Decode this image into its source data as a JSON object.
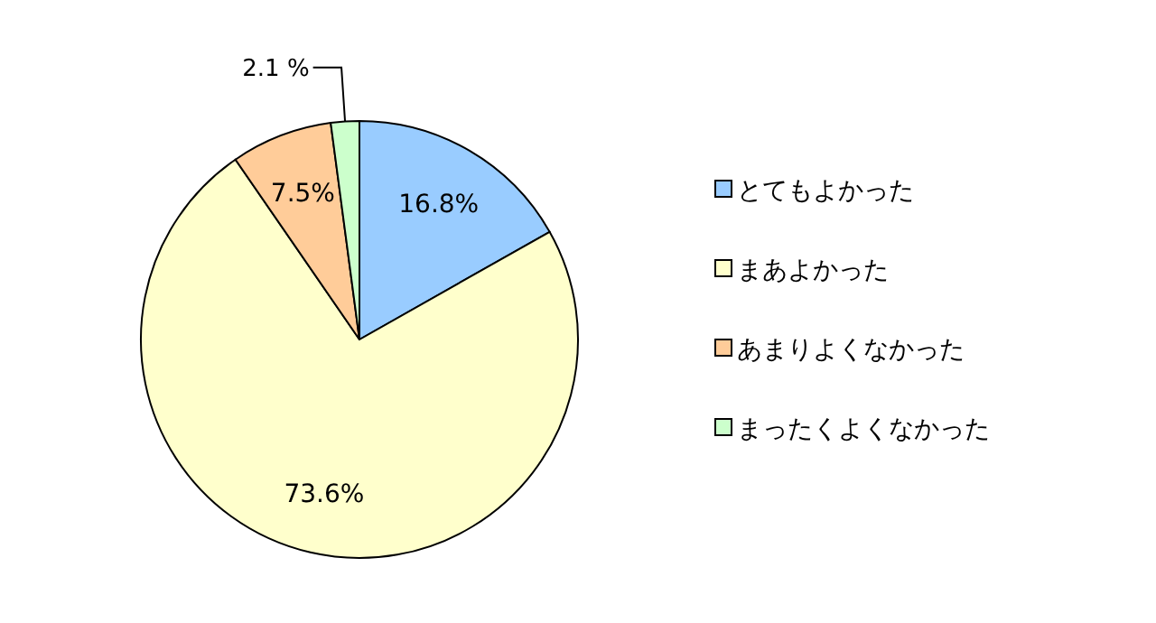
{
  "chart_data": {
    "type": "pie",
    "categories": [
      "とてもよかった",
      "まあよかった",
      "あまりよくなかった",
      "まったくよくなかった"
    ],
    "values": [
      16.8,
      73.6,
      7.5,
      2.1
    ],
    "colors": [
      "#99ccff",
      "#ffffcc",
      "#ffcc99",
      "#ccffcc"
    ],
    "value_labels": [
      "16.8%",
      "73.6%",
      "7.5%",
      "2.1 %"
    ],
    "legend": "right"
  }
}
